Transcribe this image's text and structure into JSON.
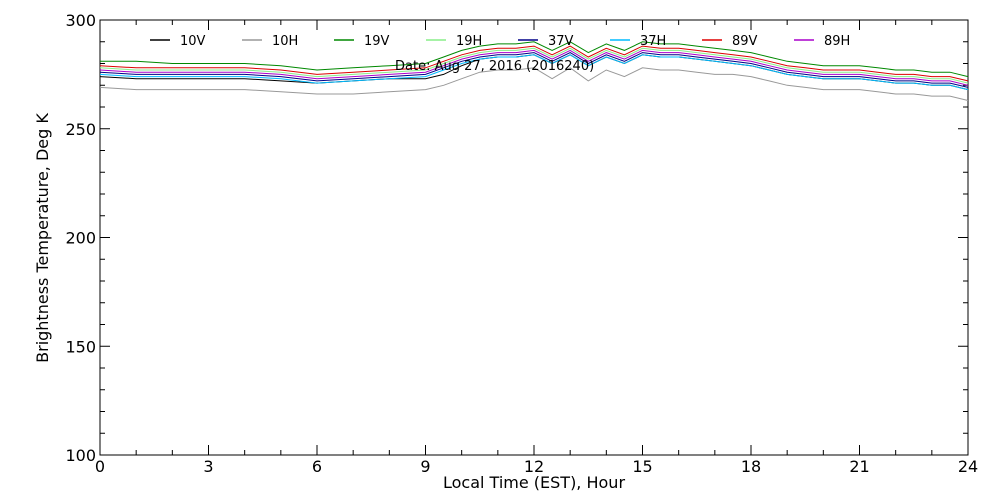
{
  "chart_data": {
    "type": "line",
    "xlabel": "Local Time (EST), Hour",
    "ylabel": "Brightness Temperature, Deg K",
    "xlim": [
      0,
      24
    ],
    "ylim": [
      100,
      300
    ],
    "xticks": [
      0,
      3,
      6,
      9,
      12,
      15,
      18,
      21,
      24
    ],
    "yticks": [
      100,
      150,
      200,
      250,
      300
    ],
    "annotation": "Date: Aug 27, 2016 (2016240)",
    "legend_position": "top",
    "x": [
      0,
      1,
      2,
      3,
      4,
      5,
      6,
      7,
      8,
      9,
      9.5,
      10,
      10.5,
      11,
      11.5,
      12,
      12.5,
      13,
      13.5,
      14,
      14.5,
      15,
      15.5,
      16,
      16.5,
      17,
      17.5,
      18,
      18.5,
      19,
      19.5,
      20,
      21,
      21.5,
      22,
      22.5,
      23,
      23.5,
      24
    ],
    "series": [
      {
        "name": "10V",
        "color": "#000000",
        "values": [
          274,
          273,
          273,
          273,
          273,
          272,
          271,
          272,
          273,
          273,
          275,
          279,
          282,
          283,
          283,
          284,
          280,
          284,
          279,
          283,
          280,
          284,
          283,
          283,
          282,
          281,
          280,
          279,
          277,
          275,
          274,
          273,
          273,
          272,
          271,
          271,
          270,
          270,
          268
        ]
      },
      {
        "name": "10H",
        "color": "#999999",
        "values": [
          269,
          268,
          268,
          268,
          268,
          267,
          266,
          266,
          267,
          268,
          270,
          273,
          276,
          277,
          277,
          278,
          273,
          278,
          272,
          277,
          274,
          278,
          277,
          277,
          276,
          275,
          275,
          274,
          272,
          270,
          269,
          268,
          268,
          267,
          266,
          266,
          265,
          265,
          263
        ]
      },
      {
        "name": "19V",
        "color": "#008800",
        "values": [
          281,
          281,
          280,
          280,
          280,
          279,
          277,
          278,
          279,
          280,
          283,
          286,
          288,
          289,
          289,
          290,
          286,
          290,
          285,
          289,
          286,
          290,
          289,
          289,
          288,
          287,
          286,
          285,
          283,
          281,
          280,
          279,
          279,
          278,
          277,
          277,
          276,
          276,
          274
        ]
      },
      {
        "name": "19H",
        "color": "#88ee88",
        "values": [
          278,
          277,
          277,
          277,
          277,
          276,
          274,
          275,
          276,
          277,
          280,
          283,
          285,
          286,
          286,
          287,
          283,
          287,
          282,
          286,
          283,
          287,
          286,
          286,
          285,
          284,
          283,
          282,
          280,
          278,
          277,
          276,
          276,
          275,
          274,
          274,
          273,
          273,
          271
        ]
      },
      {
        "name": "37V",
        "color": "#000088",
        "values": [
          276,
          275,
          275,
          275,
          275,
          274,
          272,
          273,
          274,
          275,
          278,
          281,
          283,
          284,
          284,
          285,
          281,
          285,
          280,
          284,
          281,
          285,
          284,
          284,
          283,
          282,
          281,
          280,
          278,
          276,
          275,
          274,
          274,
          273,
          272,
          272,
          271,
          271,
          269
        ]
      },
      {
        "name": "37H",
        "color": "#00bbff",
        "values": [
          275,
          274,
          274,
          274,
          274,
          273,
          271,
          272,
          273,
          274,
          277,
          280,
          282,
          283,
          283,
          284,
          280,
          284,
          279,
          283,
          280,
          284,
          283,
          283,
          282,
          281,
          280,
          279,
          277,
          275,
          274,
          273,
          273,
          272,
          271,
          271,
          270,
          270,
          268
        ]
      },
      {
        "name": "89V",
        "color": "#dd0000",
        "values": [
          279,
          278,
          278,
          278,
          278,
          277,
          275,
          276,
          277,
          278,
          281,
          284,
          286,
          287,
          287,
          288,
          284,
          288,
          283,
          287,
          284,
          288,
          287,
          287,
          286,
          285,
          284,
          283,
          281,
          279,
          278,
          277,
          277,
          276,
          275,
          275,
          274,
          274,
          272
        ]
      },
      {
        "name": "89H",
        "color": "#aa00cc",
        "values": [
          277,
          276,
          276,
          276,
          276,
          275,
          273,
          274,
          275,
          276,
          279,
          282,
          284,
          285,
          285,
          286,
          282,
          286,
          281,
          285,
          282,
          286,
          285,
          285,
          284,
          283,
          282,
          281,
          279,
          277,
          276,
          275,
          275,
          274,
          273,
          273,
          272,
          272,
          270
        ]
      }
    ]
  }
}
